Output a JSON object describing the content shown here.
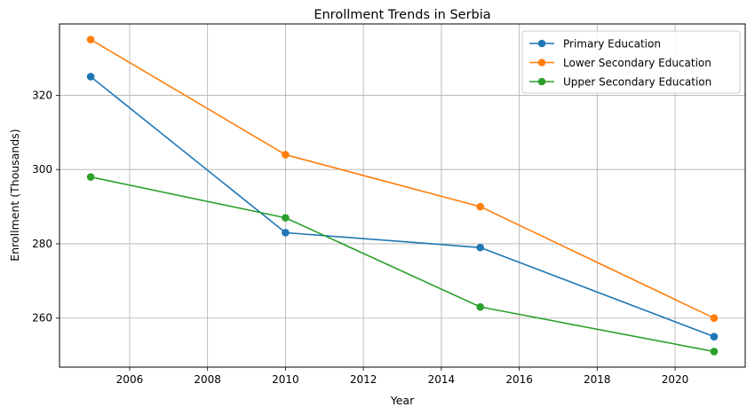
{
  "chart_data": {
    "type": "line",
    "title": "Enrollment Trends in Serbia",
    "xlabel": "Year",
    "ylabel": "Enrollment (Thousands)",
    "x": [
      2005,
      2010,
      2015,
      2021
    ],
    "xlim": [
      2004.2,
      2021.8
    ],
    "ylim": [
      246.8,
      339.2
    ],
    "xticks": [
      2006,
      2008,
      2010,
      2012,
      2014,
      2016,
      2018,
      2020
    ],
    "yticks": [
      260,
      280,
      300,
      320
    ],
    "grid": true,
    "legend_position": "top-right",
    "series": [
      {
        "name": "Primary Education",
        "color": "#1f77b4",
        "values": [
          325,
          283,
          279,
          255
        ]
      },
      {
        "name": "Lower Secondary Education",
        "color": "#ff7f0e",
        "values": [
          335,
          304,
          290,
          260
        ]
      },
      {
        "name": "Upper Secondary Education",
        "color": "#2ca02c",
        "values": [
          298,
          287,
          263,
          251
        ]
      }
    ]
  }
}
